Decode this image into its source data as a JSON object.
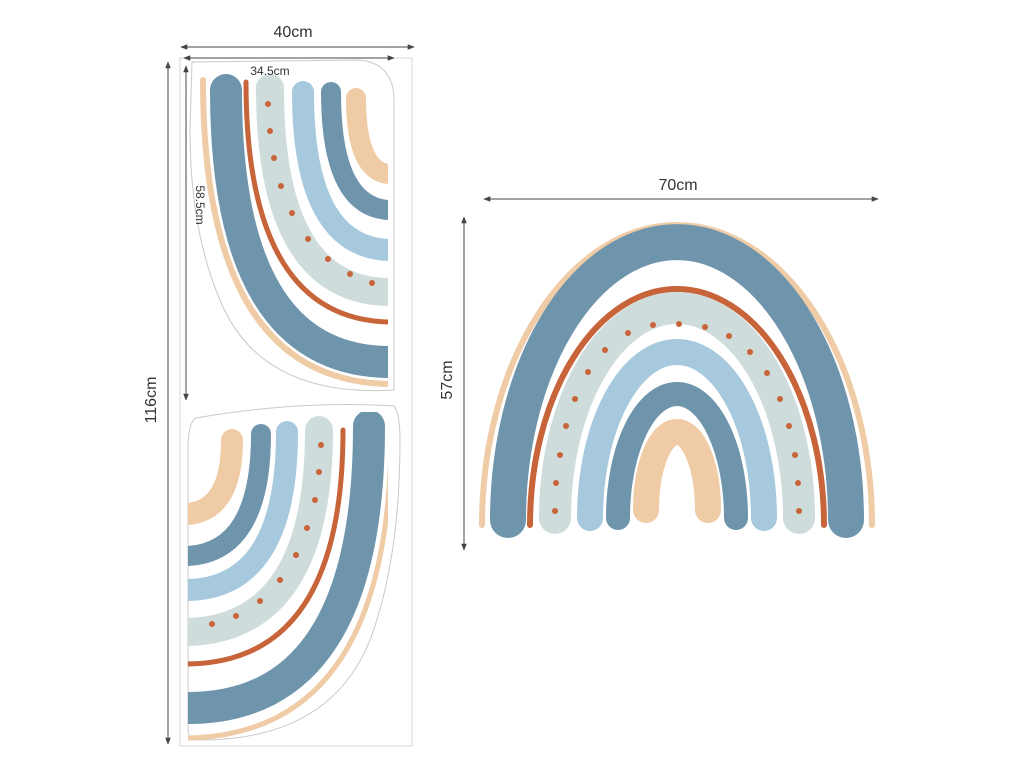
{
  "dimensions": {
    "sheet_width": "40cm",
    "sheet_height": "116cm",
    "piece_width": "34.5cm",
    "piece_height": "58.5cm",
    "assembled_width": "70cm",
    "assembled_height": "57cm"
  },
  "colors": {
    "background": "#ffffff",
    "slate_blue": "#6f95ad",
    "light_blue": "#a7c9de",
    "sage_gray": "#cfdcdc",
    "rust": "#c8643a",
    "beige": "#efcba6",
    "dimension_line": "#444444",
    "sheet_outline": "#c9c9c9"
  }
}
